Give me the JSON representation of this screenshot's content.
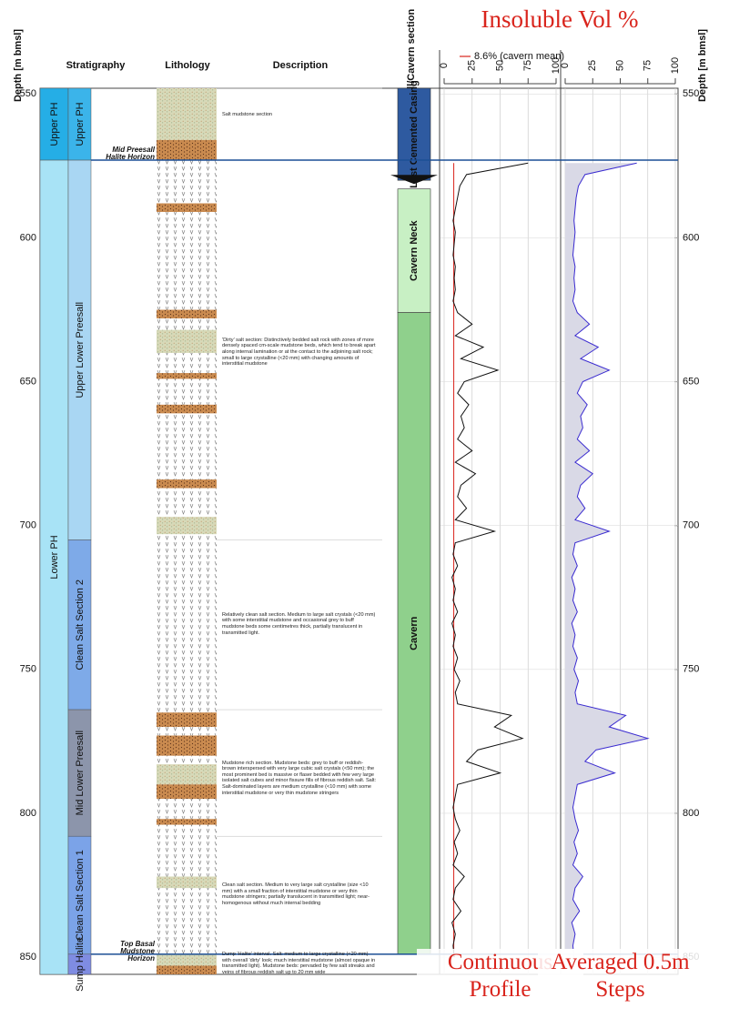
{
  "title": "Insoluble Vol %",
  "depth_label_left": "Depth [m bmsl]",
  "depth_label_right": "Depth [m bmsl]",
  "depth_lim": [
    548,
    856
  ],
  "depth_ticks": [
    550,
    600,
    650,
    700,
    750,
    800,
    850
  ],
  "headers": {
    "stratigraphy": "Stratigraphy",
    "lithology": "Lithology",
    "description": "Description",
    "well": "Well/Cavern section"
  },
  "groups": [
    {
      "label": "Upper PH",
      "top": 548,
      "base": 573,
      "color": "#25aee6"
    },
    {
      "label": "Lower PH",
      "top": 573,
      "base": 856,
      "color": "#a8e3f6"
    }
  ],
  "units": [
    {
      "label": "Upper PH",
      "top": 548,
      "base": 573,
      "color": "#3bb4ea",
      "description": "Salt mudstone section"
    },
    {
      "label": "Upper Lower Preesall",
      "top": 573,
      "base": 705,
      "color": "#a9d6f3",
      "description": "'Dirty' salt section: Distinctively bedded salt rock with zones of more densely spaced cm-scale mudstone beds, which tend to break apart along internal lamination or at the contact to the adjoining salt rock; small to large crystalline (<20 mm) with changing amounts of interstitial mudstone"
    },
    {
      "label": "Clean Salt Section 2",
      "top": 705,
      "base": 764,
      "color": "#7eaae8",
      "description": "Relatively clean salt section. Medium to large salt crystals (<20 mm) with some interstitial mudstone and occasional grey to buff mudstone beds some centimetres thick, partially translucent in transmitted light."
    },
    {
      "label": "Mid Lower Preesall",
      "top": 764,
      "base": 808,
      "color": "#8c95ab",
      "description": "Mudstone rich section. Mudstone beds: grey to buff or reddish-brown interspersed with very large cubic salt crystals (<50 mm); the most prominent bed is massive or flaser bedded with few very large isolated salt cubes and minor fissure fills of fibrous reddish salt. Salt: Salt-dominated layers are medium crystalline (<10 mm) with some interstitial mudstone or very thin mudstone stringers"
    },
    {
      "label": "Clean Salt Section 1",
      "top": 808,
      "base": 849,
      "color": "#7ba3e8",
      "description": "Clean salt section. Medium to very large salt crystalline (size <10 mm) with a small fraction of interstitial mudstone or very thin mudstone stringers; partially translucent in transmitted light; near-homogenous without much internal bedding"
    },
    {
      "label": "Sump Halite",
      "top": 849,
      "base": 856,
      "color": "#7f8ce2",
      "description": "Dump 'Halite' interval. Salt: medium to large crystalline (<20 mm) with overall 'dirty' look; much interstitial mudstone (almost opaque in transmitted light). Mudstone beds: pervaded by few salt streaks and veins of fibrous reddish salt up to 20 mm wide"
    }
  ],
  "horizons": [
    {
      "label": "Mid Preesall Halite Horizon",
      "depth": 573
    },
    {
      "label": "Top Basal Mudstone Horizon",
      "depth": 849
    }
  ],
  "lithology": [
    {
      "type": "mixed",
      "top": 548,
      "base": 566
    },
    {
      "type": "mudstone",
      "top": 566,
      "base": 573
    },
    {
      "type": "mudstone",
      "top": 588,
      "base": 591
    },
    {
      "type": "mudstone",
      "top": 625,
      "base": 628
    },
    {
      "type": "mixed",
      "top": 632,
      "base": 640
    },
    {
      "type": "mudstone",
      "top": 647,
      "base": 649
    },
    {
      "type": "mudstone",
      "top": 658,
      "base": 661
    },
    {
      "type": "mudstone",
      "top": 684,
      "base": 687
    },
    {
      "type": "mixed",
      "top": 697,
      "base": 703
    },
    {
      "type": "mudstone",
      "top": 765,
      "base": 770
    },
    {
      "type": "mudstone",
      "top": 773,
      "base": 780
    },
    {
      "type": "mixed",
      "top": 783,
      "base": 790
    },
    {
      "type": "mudstone",
      "top": 790,
      "base": 795
    },
    {
      "type": "mudstone",
      "top": 802,
      "base": 804
    },
    {
      "type": "mixed",
      "top": 822,
      "base": 826
    },
    {
      "type": "mixed",
      "top": 849,
      "base": 853
    },
    {
      "type": "mudstone",
      "top": 853,
      "base": 856
    }
  ],
  "well": [
    {
      "label": "Last Cemented Casing",
      "top": 548,
      "base": 580,
      "color": "#2e5aa0"
    },
    {
      "label": "Cavern Neck",
      "top": 583,
      "base": 626,
      "color": "#c8f0c4"
    },
    {
      "label": "Cavern",
      "top": 626,
      "base": 849,
      "color": "#8fd08c"
    }
  ],
  "chart_data": [
    {
      "type": "line",
      "annotation": "Continuous Profile",
      "color": "#111111",
      "mean": 8.6,
      "mean_label": "8.6% (cavern mean)",
      "mean_color": "#d9241c",
      "xlim": [
        0,
        100
      ],
      "xticks": [
        0,
        25,
        50,
        75,
        100
      ],
      "grid": true,
      "depths": [
        574,
        578,
        582,
        586,
        590,
        594,
        598,
        602,
        606,
        610,
        614,
        618,
        622,
        626,
        630,
        634,
        638,
        642,
        646,
        650,
        654,
        658,
        662,
        666,
        670,
        674,
        678,
        682,
        686,
        690,
        694,
        698,
        702,
        706,
        710,
        714,
        718,
        722,
        726,
        730,
        734,
        738,
        742,
        746,
        750,
        754,
        758,
        762,
        766,
        770,
        774,
        778,
        782,
        786,
        790,
        794,
        798,
        802,
        806,
        810,
        814,
        818,
        822,
        826,
        830,
        834,
        838,
        842,
        846,
        850
      ],
      "values": [
        75,
        20,
        14,
        12,
        10,
        8,
        10,
        9,
        8,
        10,
        9,
        10,
        8,
        12,
        25,
        10,
        35,
        15,
        48,
        18,
        12,
        22,
        15,
        18,
        12,
        25,
        10,
        28,
        15,
        12,
        20,
        10,
        45,
        10,
        8,
        12,
        7,
        10,
        8,
        12,
        7,
        10,
        8,
        12,
        9,
        14,
        10,
        12,
        60,
        45,
        70,
        30,
        20,
        50,
        12,
        10,
        8,
        10,
        14,
        9,
        12,
        8,
        18,
        10,
        8,
        15,
        7,
        10,
        8,
        9
      ]
    },
    {
      "type": "line",
      "annotation": "Averaged 0.5m Steps",
      "color": "#3a2bd0",
      "fill": "#d9d9e6",
      "xlim": [
        0,
        100
      ],
      "xticks": [
        0,
        25,
        50,
        75,
        100
      ],
      "grid": true,
      "depths": [
        574,
        578,
        582,
        586,
        590,
        594,
        598,
        602,
        606,
        610,
        614,
        618,
        622,
        626,
        630,
        634,
        638,
        642,
        646,
        650,
        654,
        658,
        662,
        666,
        670,
        674,
        678,
        682,
        686,
        690,
        694,
        698,
        702,
        706,
        710,
        714,
        718,
        722,
        726,
        730,
        734,
        738,
        742,
        746,
        750,
        754,
        758,
        762,
        766,
        770,
        774,
        778,
        782,
        786,
        790,
        794,
        798,
        802,
        806,
        810,
        814,
        818,
        822,
        826,
        830,
        834,
        838,
        842,
        846,
        850
      ],
      "values": [
        65,
        18,
        12,
        10,
        9,
        8,
        9,
        8,
        7,
        9,
        8,
        9,
        7,
        11,
        22,
        9,
        30,
        14,
        40,
        16,
        11,
        20,
        14,
        16,
        11,
        22,
        9,
        25,
        14,
        11,
        18,
        9,
        40,
        9,
        7,
        11,
        6,
        9,
        7,
        11,
        6,
        9,
        7,
        11,
        8,
        12,
        9,
        11,
        55,
        40,
        75,
        28,
        18,
        45,
        11,
        9,
        7,
        9,
        12,
        8,
        11,
        7,
        16,
        9,
        7,
        13,
        6,
        9,
        7,
        8
      ]
    }
  ]
}
